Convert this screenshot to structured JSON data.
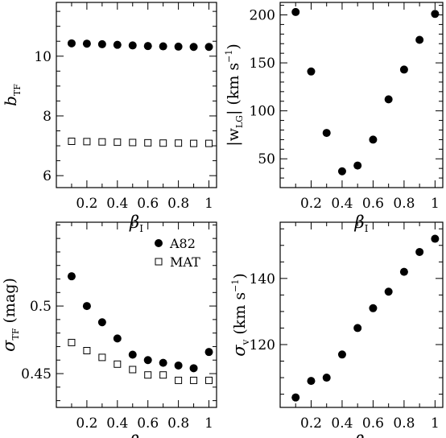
{
  "chart_data": [
    {
      "type": "scatter",
      "xlabel": "βI",
      "ylabel": "bTF",
      "xlim": [
        0,
        1.05
      ],
      "ylim": [
        5.6,
        11.8
      ],
      "xticks": [
        0.2,
        0.4,
        0.6,
        0.8,
        1
      ],
      "xtick_labels": [
        "0.2",
        "0.4",
        "0.6",
        "0.8",
        "1"
      ],
      "yticks": [
        6,
        8,
        10
      ],
      "ytick_labels": [
        "6",
        "8",
        "10"
      ],
      "series": [
        {
          "marker": "filled-circle",
          "x": [
            0.1,
            0.2,
            0.3,
            0.4,
            0.5,
            0.6,
            0.7,
            0.8,
            0.9,
            1.0
          ],
          "y": [
            10.43,
            10.42,
            10.4,
            10.38,
            10.36,
            10.34,
            10.33,
            10.32,
            10.31,
            10.31
          ]
        },
        {
          "marker": "open-square",
          "x": [
            0.1,
            0.2,
            0.3,
            0.4,
            0.5,
            0.6,
            0.7,
            0.8,
            0.9,
            1.0
          ],
          "y": [
            7.15,
            7.14,
            7.13,
            7.12,
            7.11,
            7.1,
            7.09,
            7.09,
            7.08,
            7.08
          ]
        }
      ]
    },
    {
      "type": "scatter",
      "xlabel": "βI",
      "ylabel": "|wLG| (km s−1)",
      "xlim": [
        0,
        1.05
      ],
      "ylim": [
        20,
        213
      ],
      "xticks": [
        0.2,
        0.4,
        0.6,
        0.8,
        1
      ],
      "xtick_labels": [
        "0.2",
        "0.4",
        "0.6",
        "0.8",
        "1"
      ],
      "yticks": [
        50,
        100,
        150,
        200
      ],
      "ytick_labels": [
        "50",
        "100",
        "150",
        "200"
      ],
      "series": [
        {
          "marker": "filled-circle",
          "x": [
            0.1,
            0.2,
            0.3,
            0.4,
            0.5,
            0.6,
            0.7,
            0.8,
            0.9,
            1.0
          ],
          "y": [
            203,
            141,
            77,
            37,
            43,
            70,
            112,
            143,
            174,
            201
          ]
        }
      ]
    },
    {
      "type": "scatter",
      "xlabel": "βI",
      "ylabel": "σTF (mag)",
      "xlim": [
        0,
        1.05
      ],
      "ylim": [
        0.425,
        0.562
      ],
      "xticks": [
        0.2,
        0.4,
        0.6,
        0.8,
        1
      ],
      "xtick_labels": [
        "0.2",
        "0.4",
        "0.6",
        "0.8",
        "1"
      ],
      "yticks": [
        0.45,
        0.5
      ],
      "ytick_labels": [
        "0.45",
        "0.5"
      ],
      "legend": {
        "placement": "top-right",
        "entries": [
          "A82",
          "MAT"
        ]
      },
      "series": [
        {
          "name": "A82",
          "marker": "filled-circle",
          "x": [
            0.1,
            0.2,
            0.3,
            0.4,
            0.5,
            0.6,
            0.7,
            0.8,
            0.9,
            1.0
          ],
          "y": [
            0.522,
            0.5,
            0.488,
            0.476,
            0.464,
            0.46,
            0.458,
            0.456,
            0.454,
            0.466
          ]
        },
        {
          "name": "MAT",
          "marker": "open-square",
          "x": [
            0.1,
            0.2,
            0.3,
            0.4,
            0.5,
            0.6,
            0.7,
            0.8,
            0.9,
            1.0
          ],
          "y": [
            0.473,
            0.467,
            0.462,
            0.457,
            0.453,
            0.449,
            0.449,
            0.445,
            0.445,
            0.445
          ]
        }
      ]
    },
    {
      "type": "scatter",
      "xlabel": "βI",
      "ylabel": "σv (km s−1)",
      "xlim": [
        0,
        1.05
      ],
      "ylim": [
        101,
        157
      ],
      "xticks": [
        0.2,
        0.4,
        0.6,
        0.8,
        1
      ],
      "xtick_labels": [
        "0.2",
        "0.4",
        "0.6",
        "0.8",
        "1"
      ],
      "yticks": [
        120,
        140
      ],
      "ytick_labels": [
        "120",
        "140"
      ],
      "series": [
        {
          "marker": "filled-circle",
          "x": [
            0.1,
            0.2,
            0.3,
            0.4,
            0.5,
            0.6,
            0.7,
            0.8,
            0.9,
            1.0
          ],
          "y": [
            104,
            109,
            110,
            117,
            125,
            131,
            136,
            142,
            148,
            152
          ]
        }
      ]
    }
  ]
}
